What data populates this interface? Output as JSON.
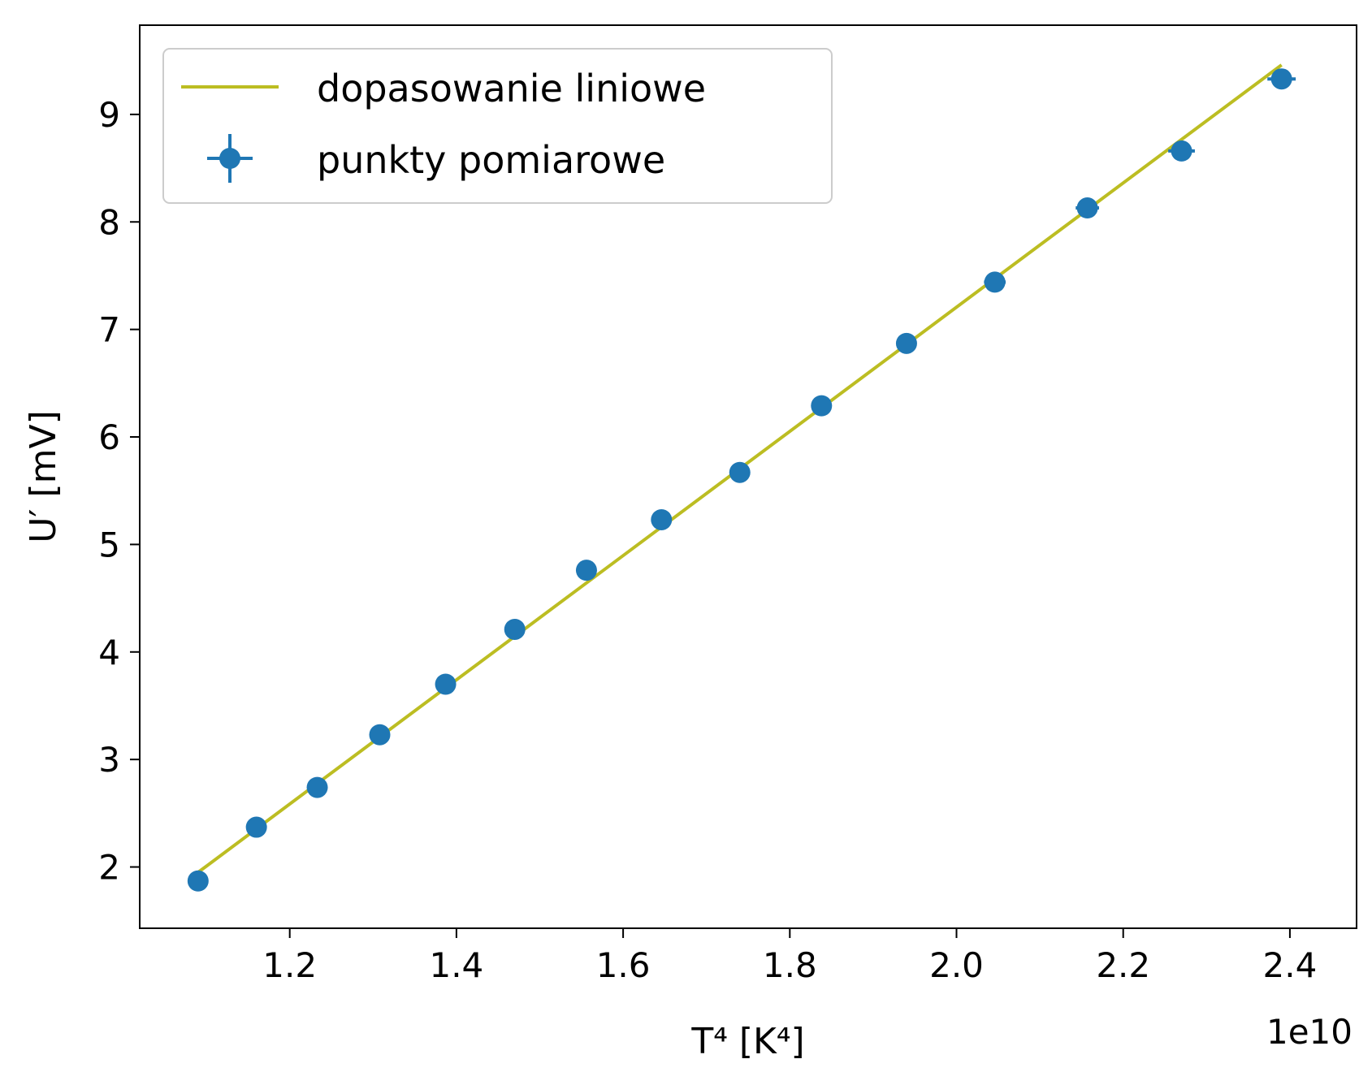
{
  "chart_data": {
    "type": "scatter",
    "xlabel": "T⁴ [K⁴]",
    "ylabel": "U′ [mV]",
    "x_offset_label": "1e10",
    "x_ticks": [
      1.2,
      1.4,
      1.6,
      1.8,
      2.0,
      2.2,
      2.4
    ],
    "x_tick_labels": [
      "1.2",
      "1.4",
      "1.6",
      "1.8",
      "2.0",
      "2.2",
      "2.4"
    ],
    "y_ticks": [
      2,
      3,
      4,
      5,
      6,
      7,
      8,
      9
    ],
    "y_tick_labels": [
      "2",
      "3",
      "4",
      "5",
      "6",
      "7",
      "8",
      "9"
    ],
    "xlim": [
      1.02,
      2.48
    ],
    "ylim": [
      1.43,
      9.83
    ],
    "grid": false,
    "legend_position": "top-left",
    "series": [
      {
        "name": "dopasowanie liniowe",
        "kind": "line",
        "color": "#bcbd22",
        "x": [
          1.09,
          2.39
        ],
        "y": [
          1.95,
          9.46
        ]
      },
      {
        "name": "punkty pomiarowe",
        "kind": "errorbar",
        "color": "#1f77b4",
        "x": [
          1.09,
          1.16,
          1.233,
          1.308,
          1.387,
          1.47,
          1.556,
          1.646,
          1.74,
          1.838,
          1.94,
          2.046,
          2.157,
          2.27,
          2.39
        ],
        "y": [
          1.87,
          2.37,
          2.74,
          3.23,
          3.7,
          4.21,
          4.76,
          5.23,
          5.67,
          6.29,
          6.87,
          7.44,
          8.13,
          8.66,
          9.33
        ],
        "x_err": [
          0.004,
          0.005,
          0.005,
          0.006,
          0.007,
          0.008,
          0.009,
          0.009,
          0.01,
          0.011,
          0.012,
          0.013,
          0.014,
          0.016,
          0.017
        ],
        "y_err": [
          0.02,
          0.02,
          0.02,
          0.02,
          0.02,
          0.02,
          0.02,
          0.02,
          0.02,
          0.02,
          0.02,
          0.02,
          0.02,
          0.02,
          0.02
        ]
      }
    ]
  }
}
